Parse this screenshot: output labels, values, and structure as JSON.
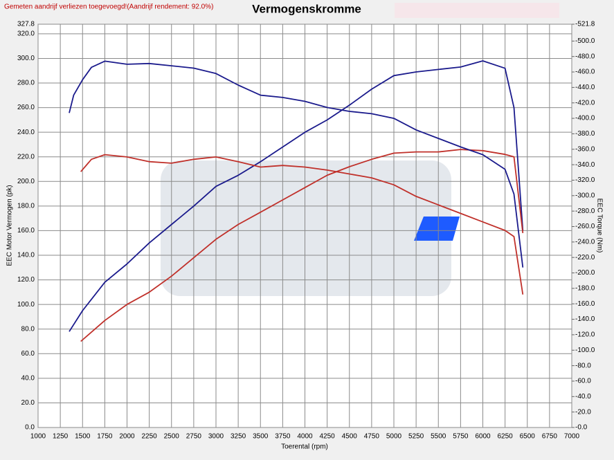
{
  "header": {
    "note": "Gemeten aandrijf verliezen toegevoegd!(Aandrijf rendement: 92.0%)"
  },
  "chart_data": {
    "type": "line",
    "title": "Vermogenskromme",
    "xlabel": "Toerental (rpm)",
    "ylabel": "EEC Motor Vermogen (pk)",
    "y2label": "EEC Torque (Nm)",
    "xlim": [
      1000,
      7000
    ],
    "xticks": [
      1000,
      1250,
      1500,
      1750,
      2000,
      2250,
      2500,
      2750,
      3000,
      3250,
      3500,
      3750,
      4000,
      4250,
      4500,
      4750,
      5000,
      5250,
      5500,
      5750,
      6000,
      6250,
      6500,
      6750,
      7000
    ],
    "ylim": [
      0,
      327.8
    ],
    "yticks": [
      {
        "value": 0,
        "label": "0.0"
      },
      {
        "value": 20,
        "label": "20.0"
      },
      {
        "value": 40,
        "label": "40.0"
      },
      {
        "value": 60,
        "label": "60.0"
      },
      {
        "value": 80,
        "label": "80.0"
      },
      {
        "value": 100,
        "label": "100.0"
      },
      {
        "value": 120,
        "label": "120.0"
      },
      {
        "value": 140,
        "label": "140.0"
      },
      {
        "value": 160,
        "label": "160.0"
      },
      {
        "value": 180,
        "label": "180.0"
      },
      {
        "value": 200,
        "label": "200.0"
      },
      {
        "value": 220,
        "label": "220.0"
      },
      {
        "value": 240,
        "label": "240.0"
      },
      {
        "value": 260,
        "label": "260.0"
      },
      {
        "value": 280,
        "label": "280.0"
      },
      {
        "value": 300,
        "label": "300.0"
      },
      {
        "value": 320,
        "label": "320.0"
      },
      {
        "value": 327.8,
        "label": "327.8"
      }
    ],
    "y2lim": [
      0,
      521.8
    ],
    "y2ticks": [
      {
        "value": 0,
        "label": "-0.0"
      },
      {
        "value": 20,
        "label": "-20.0"
      },
      {
        "value": 40,
        "label": "-40.0"
      },
      {
        "value": 60,
        "label": "-60.0"
      },
      {
        "value": 80,
        "label": "-80.0"
      },
      {
        "value": 100,
        "label": "-100.0"
      },
      {
        "value": 120,
        "label": "-120.0"
      },
      {
        "value": 140,
        "label": "-140.0"
      },
      {
        "value": 160,
        "label": "-160.0"
      },
      {
        "value": 180,
        "label": "-180.0"
      },
      {
        "value": 200,
        "label": "-200.0"
      },
      {
        "value": 220,
        "label": "-220.0"
      },
      {
        "value": 240,
        "label": "-240.0"
      },
      {
        "value": 260,
        "label": "-260.0"
      },
      {
        "value": 280,
        "label": "-280.0"
      },
      {
        "value": 300,
        "label": "-300.0"
      },
      {
        "value": 320,
        "label": "-320.0"
      },
      {
        "value": 340,
        "label": "-340.0"
      },
      {
        "value": 360,
        "label": "-360.0"
      },
      {
        "value": 380,
        "label": "-380.0"
      },
      {
        "value": 400,
        "label": "-400.0"
      },
      {
        "value": 420,
        "label": "-420.0"
      },
      {
        "value": 440,
        "label": "-440.0"
      },
      {
        "value": 460,
        "label": "-460.0"
      },
      {
        "value": 480,
        "label": "-480.0"
      },
      {
        "value": 500,
        "label": "-500.0"
      },
      {
        "value": 521.8,
        "label": "-521.8"
      }
    ],
    "grid": true,
    "series": [
      {
        "color": "#1a1a8c",
        "x": [
          1350,
          1500,
          1750,
          2000,
          2250,
          2500,
          2750,
          3000,
          3250,
          3500,
          3750,
          4000,
          4250,
          4500,
          4750,
          5000,
          5250,
          5500,
          5750,
          6000,
          6250,
          6350,
          6450
        ],
        "values": [
          78,
          95,
          118,
          133,
          150,
          165,
          180,
          196,
          205,
          216,
          228,
          240,
          250,
          262,
          275,
          286,
          289,
          291,
          293,
          298,
          292,
          260,
          160
        ]
      },
      {
        "color": "#c0302a",
        "x": [
          1480,
          1750,
          2000,
          2250,
          2500,
          2750,
          3000,
          3250,
          3500,
          3750,
          4000,
          4250,
          4500,
          4750,
          5000,
          5250,
          5500,
          5750,
          6000,
          6250,
          6350,
          6450
        ],
        "values": [
          70,
          87,
          100,
          110,
          123,
          138,
          153,
          165,
          175,
          185,
          195,
          205,
          212,
          218,
          223,
          224,
          224,
          226,
          225,
          222,
          220,
          158
        ]
      },
      {
        "color": "#1a1a8c",
        "axis": "y2",
        "x": [
          1350,
          1400,
          1500,
          1600,
          1750,
          2000,
          2250,
          2500,
          2750,
          3000,
          3250,
          3500,
          3750,
          4000,
          4250,
          4500,
          4750,
          5000,
          5250,
          5500,
          5750,
          6000,
          6250,
          6350,
          6450
        ],
        "values": [
          407,
          430,
          450,
          466,
          474,
          470,
          471,
          468,
          465,
          458,
          443,
          430,
          427,
          422,
          414,
          409,
          406,
          400,
          385,
          374,
          363,
          353,
          334,
          302,
          207
        ]
      },
      {
        "color": "#c0302a",
        "axis": "y2",
        "x": [
          1480,
          1600,
          1750,
          2000,
          2250,
          2500,
          2750,
          3000,
          3250,
          3500,
          3750,
          4000,
          4250,
          4500,
          4750,
          5000,
          5250,
          5500,
          5750,
          6000,
          6250,
          6350,
          6450
        ],
        "values": [
          331,
          347,
          353,
          350,
          344,
          342,
          347,
          350,
          344,
          337,
          339,
          337,
          333,
          328,
          323,
          314,
          299,
          288,
          277,
          266,
          255,
          247,
          172
        ]
      }
    ]
  }
}
